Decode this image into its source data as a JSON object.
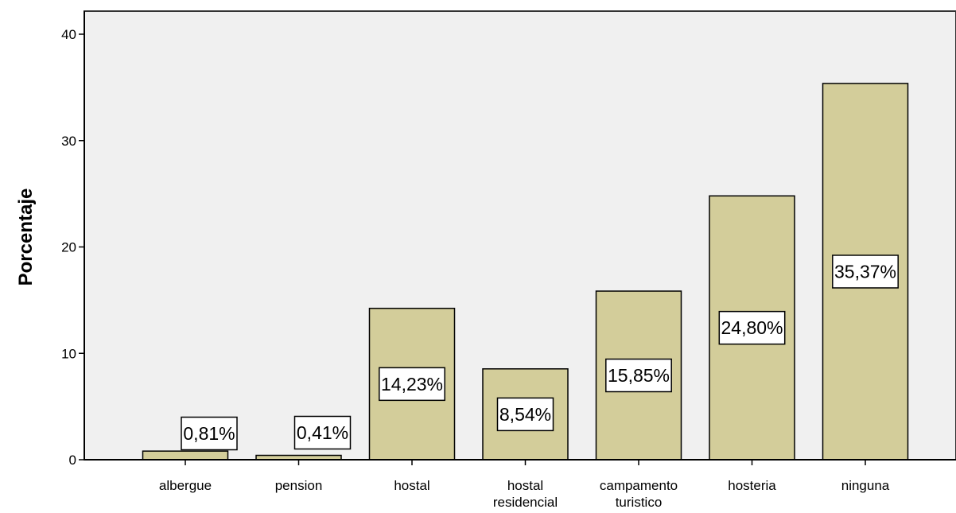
{
  "chart_data": {
    "type": "bar",
    "categories": [
      "albergue",
      "pension",
      "hostal",
      "hostal\nresidencial",
      "campamento\nturistico",
      "hosteria",
      "ninguna"
    ],
    "values": [
      0.81,
      0.41,
      14.23,
      8.54,
      15.85,
      24.8,
      35.37
    ],
    "data_labels": [
      "0,81%",
      "0,41%",
      "14,23%",
      "8,54%",
      "15,85%",
      "24,80%",
      "35,37%"
    ],
    "ylabel": "Porcentaje",
    "xlabel": "",
    "ylim": [
      0,
      40
    ],
    "yticks": [
      0,
      10,
      20,
      30,
      40
    ],
    "ytick_labels": [
      "0",
      "10",
      "20",
      "30",
      "40"
    ],
    "grid": false,
    "colors": {
      "bar": "#d3cd9a",
      "plot_bg": "#f0f0f0",
      "bar_edge": "#000000",
      "label_bg": "#ffffff"
    }
  }
}
